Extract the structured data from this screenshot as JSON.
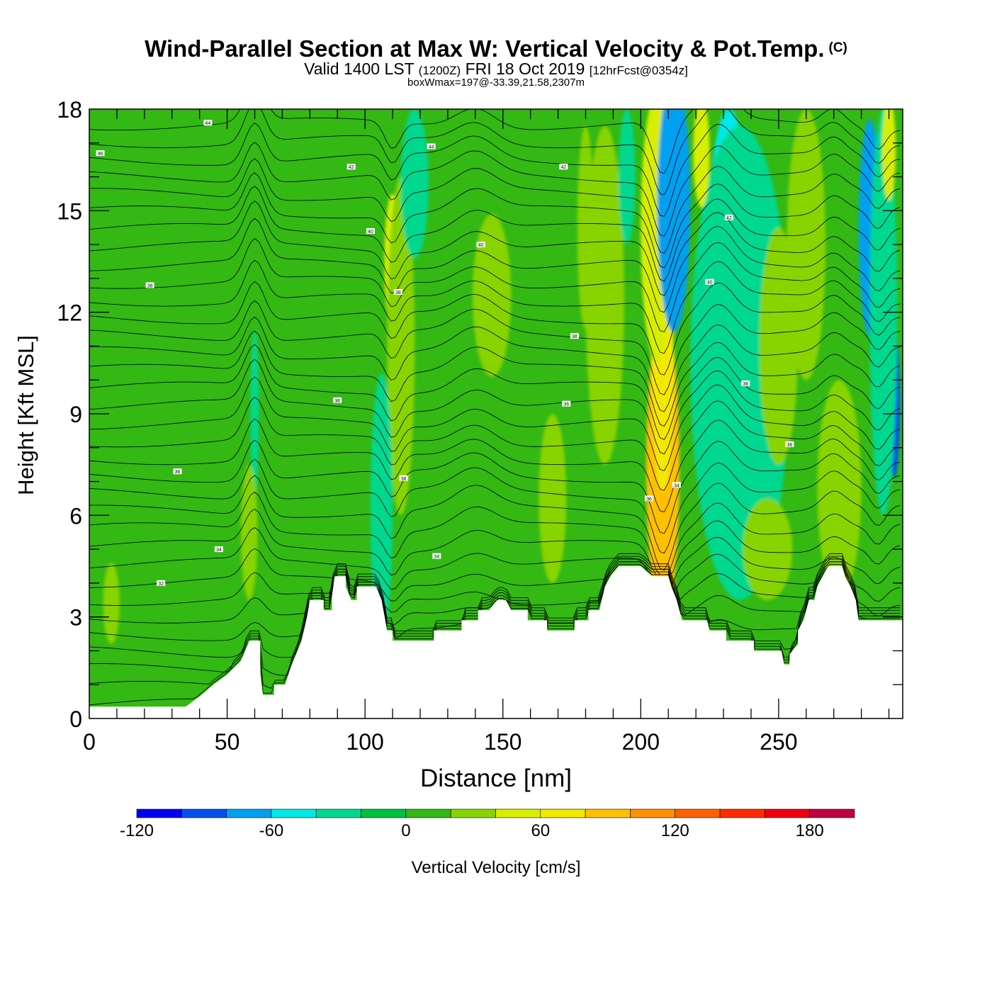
{
  "titles": {
    "main": "Wind-Parallel Section at Max W: Vertical Velocity & Pot.Temp.",
    "copyright_mark": "(C)",
    "valid_a": "Valid 1400 LST",
    "valid_zulu": "(1200Z)",
    "valid_b": "FRI 18 Oct 2019",
    "forecast": "[12hrFcst@0354z]",
    "box_max": "boxWmax=197@-33.39,21.58,2307m"
  },
  "chart_data": {
    "type": "heatmap",
    "description_fields": "filled vertical velocity with potential temperature contours over terrain",
    "xlabel": "Distance [nm]",
    "ylabel": "Height [Kft MSL]",
    "xlim": [
      0,
      295
    ],
    "ylim": [
      0,
      18
    ],
    "x_ticks": [
      0,
      50,
      100,
      150,
      200,
      250
    ],
    "y_ticks": [
      0,
      3,
      6,
      9,
      12,
      15,
      18
    ],
    "colorbar": {
      "label": "Vertical Velocity [cm/s]",
      "tick_values": [
        -120,
        -60,
        0,
        60,
        120,
        180
      ],
      "tick_labels": [
        "-120",
        "-60",
        "0",
        "60",
        "120",
        "180"
      ],
      "bins": [
        -120,
        -100,
        -80,
        -60,
        -40,
        -20,
        0,
        20,
        40,
        60,
        80,
        100,
        120,
        140,
        160,
        180,
        200
      ],
      "colors": [
        "#0000ee",
        "#0050f0",
        "#00a0f0",
        "#00e8e8",
        "#00d890",
        "#00c040",
        "#33b814",
        "#88d400",
        "#d8ee00",
        "#f4e800",
        "#ffc000",
        "#ff9000",
        "#ff6000",
        "#ff2a00",
        "#ee0010",
        "#c00040"
      ]
    },
    "terrain_kft": [
      [
        0,
        0.35
      ],
      [
        35,
        0.35
      ],
      [
        40,
        0.65
      ],
      [
        45,
        1
      ],
      [
        50,
        1.3
      ],
      [
        55,
        1.7
      ],
      [
        58,
        2.3
      ],
      [
        62,
        2.3
      ],
      [
        62,
        1.3
      ],
      [
        63,
        0.7
      ],
      [
        67,
        0.7
      ],
      [
        67,
        1
      ],
      [
        71,
        1
      ],
      [
        73,
        1.5
      ],
      [
        77,
        2.3
      ],
      [
        79,
        3
      ],
      [
        80,
        3.5
      ],
      [
        85,
        3.5
      ],
      [
        85,
        3.2
      ],
      [
        88,
        3.2
      ],
      [
        88,
        3.6
      ],
      [
        89,
        4.2
      ],
      [
        93,
        4.2
      ],
      [
        93,
        3.9
      ],
      [
        95,
        3.5
      ],
      [
        97,
        3.5
      ],
      [
        97,
        3.9
      ],
      [
        104,
        3.9
      ],
      [
        106,
        3.5
      ],
      [
        108,
        2.6
      ],
      [
        110,
        2.6
      ],
      [
        110,
        2.3
      ],
      [
        112,
        2.3
      ],
      [
        118,
        2.3
      ],
      [
        125,
        2.3
      ],
      [
        125,
        2.6
      ],
      [
        135,
        2.6
      ],
      [
        135,
        2.9
      ],
      [
        141,
        2.9
      ],
      [
        141,
        3.2
      ],
      [
        145,
        3.2
      ],
      [
        148,
        3.5
      ],
      [
        151,
        3.5
      ],
      [
        153,
        3.2
      ],
      [
        159,
        3.2
      ],
      [
        159,
        2.9
      ],
      [
        166,
        2.9
      ],
      [
        166,
        2.6
      ],
      [
        176,
        2.6
      ],
      [
        176,
        2.9
      ],
      [
        181,
        2.9
      ],
      [
        181,
        3.2
      ],
      [
        185,
        3.2
      ],
      [
        187,
        3.9
      ],
      [
        189,
        4.2
      ],
      [
        192,
        4.5
      ],
      [
        200,
        4.5
      ],
      [
        204,
        4.2
      ],
      [
        210,
        4.2
      ],
      [
        211,
        3.9
      ],
      [
        213,
        3.5
      ],
      [
        214,
        3.2
      ],
      [
        215,
        2.9
      ],
      [
        224,
        2.9
      ],
      [
        225,
        2.6
      ],
      [
        231,
        2.6
      ],
      [
        231,
        2.3
      ],
      [
        241,
        2.3
      ],
      [
        241,
        2
      ],
      [
        251,
        2
      ],
      [
        252,
        1.6
      ],
      [
        254,
        1.6
      ],
      [
        254,
        1.9
      ],
      [
        257,
        2.2
      ],
      [
        257,
        2.6
      ],
      [
        259,
        2.9
      ],
      [
        260,
        3.2
      ],
      [
        261,
        3.5
      ],
      [
        263,
        3.5
      ],
      [
        264,
        3.9
      ],
      [
        266,
        4.2
      ],
      [
        268,
        4.5
      ],
      [
        273,
        4.5
      ],
      [
        274,
        4.2
      ],
      [
        276,
        3.9
      ],
      [
        278,
        3.5
      ],
      [
        279,
        2.9
      ],
      [
        295,
        2.9
      ]
    ],
    "w_features": [
      {
        "x": 209,
        "y": 7.8,
        "rx": 2.2,
        "ry": 1.6,
        "w": 197
      },
      {
        "x": 209,
        "y": 7.2,
        "rx": 4,
        "ry": 3.2,
        "w": 150
      },
      {
        "x": 208,
        "y": 7.4,
        "rx": 6,
        "ry": 4.6,
        "w": 95
      },
      {
        "x": 208,
        "y": 10.2,
        "rx": 4,
        "ry": 3.5,
        "w": 60
      },
      {
        "x": 206,
        "y": 14.5,
        "rx": 6,
        "ry": 4,
        "w": 45
      },
      {
        "x": 212,
        "y": 16.5,
        "rx": 3,
        "ry": 2.3,
        "w": -105
      },
      {
        "x": 212,
        "y": 15.2,
        "rx": 6,
        "ry": 3.8,
        "w": -70
      },
      {
        "x": 228,
        "y": 10.5,
        "rx": 9,
        "ry": 4.5,
        "w": -45
      },
      {
        "x": 232,
        "y": 14.5,
        "rx": 7,
        "ry": 3.5,
        "w": -45
      },
      {
        "x": 236,
        "y": 10.5,
        "rx": 18,
        "ry": 7,
        "w": -25
      },
      {
        "x": 283,
        "y": 14.5,
        "rx": 4,
        "ry": 3.2,
        "w": -65
      },
      {
        "x": 292,
        "y": 9.3,
        "rx": 2,
        "ry": 2.2,
        "w": -100
      },
      {
        "x": 288,
        "y": 12,
        "rx": 5,
        "ry": 6,
        "w": -40
      },
      {
        "x": 222,
        "y": 16.7,
        "rx": 3,
        "ry": 1.6,
        "w": 45
      },
      {
        "x": 290,
        "y": 16.8,
        "rx": 2.5,
        "ry": 1.5,
        "w": 45
      },
      {
        "x": 274,
        "y": 7,
        "rx": 4,
        "ry": 1.8,
        "w": 55
      },
      {
        "x": 272,
        "y": 6.8,
        "rx": 8,
        "ry": 3.2,
        "w": 30
      },
      {
        "x": 110,
        "y": 13.5,
        "rx": 3,
        "ry": 2,
        "w": 40
      },
      {
        "x": 113,
        "y": 11,
        "rx": 5,
        "ry": 5,
        "w": 25
      },
      {
        "x": 118,
        "y": 15.8,
        "rx": 5,
        "ry": 2.2,
        "w": -25
      },
      {
        "x": 106,
        "y": 6.2,
        "rx": 2,
        "ry": 2.3,
        "w": -40
      },
      {
        "x": 106,
        "y": 6.2,
        "rx": 4,
        "ry": 4,
        "w": -25
      },
      {
        "x": 60,
        "y": 9,
        "rx": 1.5,
        "ry": 2.5,
        "w": -22
      },
      {
        "x": 58,
        "y": 5.5,
        "rx": 3,
        "ry": 2,
        "w": 25
      },
      {
        "x": 146,
        "y": 12.5,
        "rx": 7,
        "ry": 2.4,
        "w": 25
      },
      {
        "x": 168,
        "y": 6.5,
        "rx": 5,
        "ry": 2.5,
        "w": 25
      },
      {
        "x": 180,
        "y": 14.5,
        "rx": 3,
        "ry": 3,
        "w": 30
      },
      {
        "x": 187,
        "y": 12.5,
        "rx": 7,
        "ry": 5,
        "w": 22
      },
      {
        "x": 195,
        "y": 16,
        "rx": 3,
        "ry": 2,
        "w": -22
      },
      {
        "x": 250,
        "y": 11,
        "rx": 7,
        "ry": 3.5,
        "w": 25
      },
      {
        "x": 260,
        "y": 14,
        "rx": 7,
        "ry": 4,
        "w": 25
      },
      {
        "x": 246,
        "y": 5,
        "rx": 9,
        "ry": 1.5,
        "w": 22
      },
      {
        "x": 8,
        "y": 3.4,
        "rx": 3,
        "ry": 1.2,
        "w": 25
      }
    ],
    "theta_labels": [
      {
        "x": 43,
        "y": 17.6,
        "label": "44"
      },
      {
        "x": 4,
        "y": 16.7,
        "label": "46"
      },
      {
        "x": 124,
        "y": 16.9,
        "label": "44"
      },
      {
        "x": 95,
        "y": 16.3,
        "label": "42"
      },
      {
        "x": 172,
        "y": 16.3,
        "label": "42"
      },
      {
        "x": 102,
        "y": 14.4,
        "label": "40"
      },
      {
        "x": 142,
        "y": 14.0,
        "label": "40"
      },
      {
        "x": 232,
        "y": 14.8,
        "label": "42"
      },
      {
        "x": 22,
        "y": 12.8,
        "label": "38"
      },
      {
        "x": 112,
        "y": 12.6,
        "label": "38"
      },
      {
        "x": 225,
        "y": 12.9,
        "label": "40"
      },
      {
        "x": 176,
        "y": 11.3,
        "label": "38"
      },
      {
        "x": 238,
        "y": 9.9,
        "label": "38"
      },
      {
        "x": 90,
        "y": 9.4,
        "label": "36"
      },
      {
        "x": 173,
        "y": 9.3,
        "label": "36"
      },
      {
        "x": 254,
        "y": 8.1,
        "label": "36"
      },
      {
        "x": 114,
        "y": 7.1,
        "label": "36"
      },
      {
        "x": 32,
        "y": 7.3,
        "label": "36"
      },
      {
        "x": 213,
        "y": 6.9,
        "label": "34"
      },
      {
        "x": 203,
        "y": 6.5,
        "label": "36"
      },
      {
        "x": 126,
        "y": 4.8,
        "label": "34"
      },
      {
        "x": 47,
        "y": 5.0,
        "label": "34"
      },
      {
        "x": 26,
        "y": 4.0,
        "label": "32"
      }
    ]
  }
}
